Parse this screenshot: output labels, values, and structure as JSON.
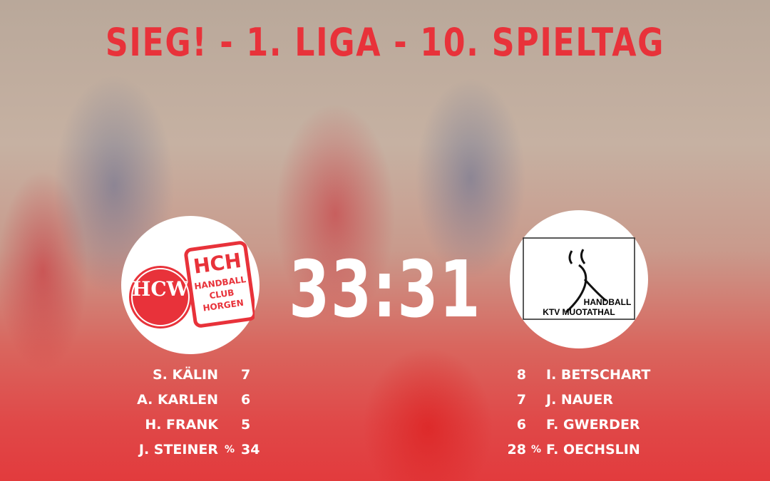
{
  "title": "SIEG! - 1. LIGA - 10. SPIELTAG",
  "score": "33:31",
  "home": {
    "logo_text": [
      "HCW",
      "HCH",
      "HANDBALL",
      "CLUB",
      "HORGEN"
    ],
    "players": [
      {
        "name": "S. KÄLIN",
        "mark": "",
        "value": "7"
      },
      {
        "name": "A. KARLEN",
        "mark": "",
        "value": "6"
      },
      {
        "name": "H. FRANK",
        "mark": "",
        "value": "5"
      },
      {
        "name": "J. STEINER",
        "mark": "%",
        "value": "34"
      }
    ]
  },
  "away": {
    "logo_text": [
      "HANDBALL",
      "KTV MUOTATHAL"
    ],
    "players": [
      {
        "name": "I. BETSCHART",
        "mark": "",
        "value": "8"
      },
      {
        "name": "J. NAUER",
        "mark": "",
        "value": "7"
      },
      {
        "name": "F. GWERDER",
        "mark": "",
        "value": "6"
      },
      {
        "name": "F. OECHSLIN",
        "mark": "%",
        "value": "28"
      }
    ]
  },
  "colors": {
    "accent": "#e8323a",
    "text": "#ffffff"
  }
}
